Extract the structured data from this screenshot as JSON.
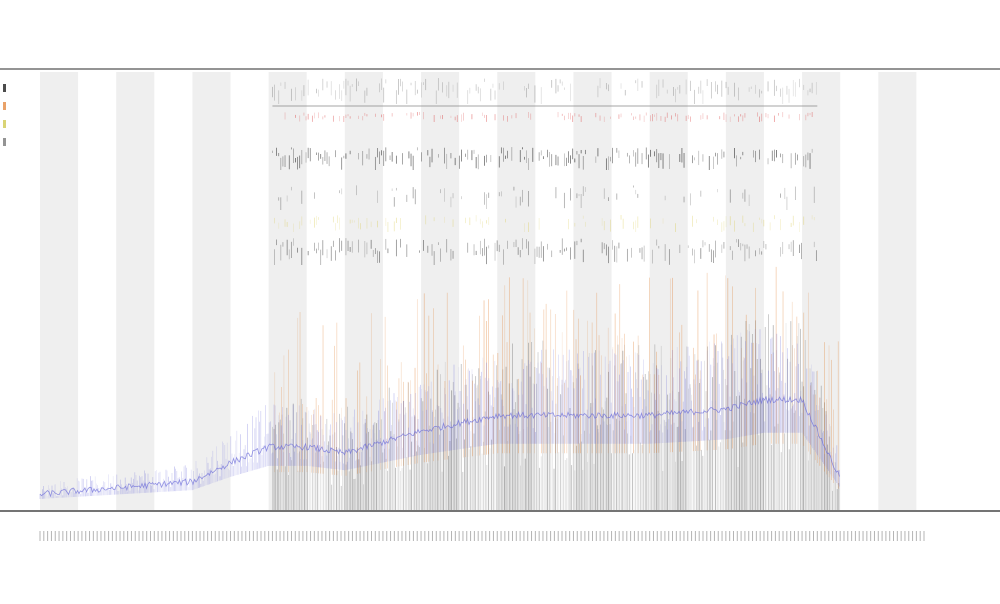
{
  "chart_data": {
    "type": "area",
    "title": "",
    "subtitle_1": "",
    "subtitle_2": "",
    "xlabel": "",
    "ylabel": "",
    "grid": false,
    "legend_position": "left",
    "legend": [
      {
        "label": "",
        "color": "#000000"
      },
      {
        "label": "",
        "color": "#e07b2a"
      },
      {
        "label": "",
        "color": "#c9c23a"
      },
      {
        "label": "",
        "color": "#666666"
      }
    ],
    "track_labels": [
      "",
      ""
    ],
    "series_colors": {
      "baseline": "#6a6ad8",
      "orange": "#e07b2a",
      "dark": "#000000",
      "red": "#d94040",
      "yellow": "#d8c84a"
    },
    "x_range": [
      0,
      232
    ],
    "y_range": [
      0,
      1
    ],
    "segments": [
      {
        "x_start": 0,
        "x_end": 10,
        "shaded": true
      },
      {
        "x_start": 10,
        "x_end": 20,
        "shaded": false
      },
      {
        "x_start": 20,
        "x_end": 30,
        "shaded": true
      },
      {
        "x_start": 30,
        "x_end": 40,
        "shaded": false
      },
      {
        "x_start": 40,
        "x_end": 50,
        "shaded": true
      },
      {
        "x_start": 50,
        "x_end": 60,
        "shaded": false
      },
      {
        "x_start": 60,
        "x_end": 70,
        "shaded": true
      },
      {
        "x_start": 70,
        "x_end": 80,
        "shaded": false
      },
      {
        "x_start": 80,
        "x_end": 90,
        "shaded": true
      },
      {
        "x_start": 90,
        "x_end": 100,
        "shaded": false
      },
      {
        "x_start": 100,
        "x_end": 110,
        "shaded": true
      },
      {
        "x_start": 110,
        "x_end": 120,
        "shaded": false
      },
      {
        "x_start": 120,
        "x_end": 130,
        "shaded": true
      },
      {
        "x_start": 130,
        "x_end": 140,
        "shaded": false
      },
      {
        "x_start": 140,
        "x_end": 150,
        "shaded": true
      },
      {
        "x_start": 150,
        "x_end": 160,
        "shaded": false
      },
      {
        "x_start": 160,
        "x_end": 170,
        "shaded": true
      },
      {
        "x_start": 170,
        "x_end": 180,
        "shaded": false
      },
      {
        "x_start": 180,
        "x_end": 190,
        "shaded": true
      },
      {
        "x_start": 190,
        "x_end": 200,
        "shaded": false
      },
      {
        "x_start": 200,
        "x_end": 210,
        "shaded": true
      },
      {
        "x_start": 210,
        "x_end": 220,
        "shaded": false
      },
      {
        "x_start": 220,
        "x_end": 230,
        "shaded": true
      }
    ],
    "data_extent": {
      "start": 0,
      "end": 210
    },
    "annotation_extent": {
      "start": 61,
      "end": 204
    },
    "series": [
      {
        "name": "",
        "color": "#6a6ad8",
        "envelope": [
          {
            "x": 0,
            "y": 0.05
          },
          {
            "x": 20,
            "y": 0.07
          },
          {
            "x": 40,
            "y": 0.09
          },
          {
            "x": 50,
            "y": 0.15
          },
          {
            "x": 60,
            "y": 0.2
          },
          {
            "x": 70,
            "y": 0.2
          },
          {
            "x": 80,
            "y": 0.18
          },
          {
            "x": 100,
            "y": 0.25
          },
          {
            "x": 120,
            "y": 0.3
          },
          {
            "x": 140,
            "y": 0.3
          },
          {
            "x": 160,
            "y": 0.3
          },
          {
            "x": 180,
            "y": 0.32
          },
          {
            "x": 190,
            "y": 0.35
          },
          {
            "x": 200,
            "y": 0.35
          },
          {
            "x": 210,
            "y": 0.1
          }
        ]
      }
    ]
  }
}
